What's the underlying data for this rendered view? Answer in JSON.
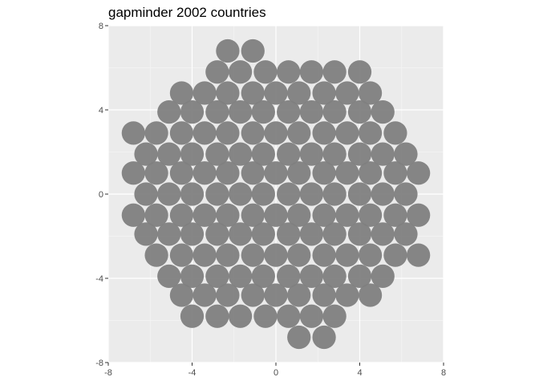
{
  "chart_data": {
    "type": "scatter",
    "title": "gapminder 2002 countries",
    "xlabel": "",
    "ylabel": "",
    "xlim": [
      -8,
      8
    ],
    "ylim": [
      -8,
      8
    ],
    "x_ticks": [
      -8,
      -4,
      0,
      4,
      8
    ],
    "y_ticks": [
      -8,
      -4,
      0,
      4,
      8
    ],
    "x_tick_labels": [
      "-8",
      "-4",
      "0",
      "4",
      "8"
    ],
    "y_tick_labels": [
      "-8",
      "-4",
      "0",
      "4",
      "8"
    ],
    "grid": true,
    "legend": "none",
    "point_radius": 0.56,
    "colors": {
      "panel": "#ebebeb",
      "grid_major": "#ffffff",
      "grid_minor": "#f5f5f5",
      "point": "#808080",
      "axis_text": "#4d4d4d",
      "tick": "#333333",
      "title": "#000000"
    },
    "rows": [
      {
        "y": 6.8,
        "x": [
          -2.3,
          -1.1
        ]
      },
      {
        "y": 5.8,
        "x": [
          -2.8,
          -1.7,
          -0.5,
          0.6,
          1.7,
          2.8,
          4.0
        ]
      },
      {
        "y": 4.8,
        "x": [
          -4.5,
          -3.4,
          -2.3,
          -1.1,
          0.0,
          1.1,
          2.3,
          3.4,
          4.5
        ]
      },
      {
        "y": 3.9,
        "x": [
          -5.1,
          -4.0,
          -2.8,
          -1.7,
          -0.6,
          0.6,
          1.7,
          2.8,
          4.0,
          5.1
        ]
      },
      {
        "y": 2.9,
        "x": [
          -6.8,
          -5.7,
          -4.5,
          -3.4,
          -2.3,
          -1.1,
          0.0,
          1.1,
          2.3,
          3.4,
          4.5,
          5.7
        ]
      },
      {
        "y": 1.9,
        "x": [
          -6.2,
          -5.1,
          -4.0,
          -2.8,
          -1.7,
          -0.6,
          0.6,
          1.7,
          2.8,
          4.0,
          5.1,
          6.2
        ]
      },
      {
        "y": 1.0,
        "x": [
          -6.8,
          -5.7,
          -4.5,
          -3.4,
          -2.3,
          -1.1,
          0.0,
          1.1,
          2.3,
          3.4,
          4.5,
          5.7,
          6.8
        ]
      },
      {
        "y": 0.0,
        "x": [
          -6.2,
          -5.1,
          -4.0,
          -2.8,
          -1.7,
          -0.6,
          0.6,
          1.7,
          2.8,
          4.0,
          5.1,
          6.2
        ]
      },
      {
        "y": -1.0,
        "x": [
          -6.8,
          -5.7,
          -4.5,
          -3.4,
          -2.3,
          -1.1,
          0.0,
          1.1,
          2.3,
          3.4,
          4.5,
          5.7,
          6.8
        ]
      },
      {
        "y": -1.9,
        "x": [
          -6.2,
          -5.1,
          -4.0,
          -2.8,
          -1.7,
          -0.6,
          0.6,
          1.7,
          2.8,
          4.0,
          5.1,
          6.2
        ]
      },
      {
        "y": -2.9,
        "x": [
          -5.7,
          -4.5,
          -3.4,
          -2.3,
          -1.1,
          0.0,
          1.1,
          2.3,
          3.4,
          4.5,
          5.7,
          6.8
        ]
      },
      {
        "y": -3.9,
        "x": [
          -5.1,
          -4.0,
          -2.8,
          -1.7,
          -0.6,
          0.6,
          1.7,
          2.8,
          4.0,
          5.1
        ]
      },
      {
        "y": -4.8,
        "x": [
          -4.5,
          -3.4,
          -2.3,
          -1.1,
          0.0,
          1.1,
          2.3,
          3.4,
          4.5
        ]
      },
      {
        "y": -5.8,
        "x": [
          -4.0,
          -2.8,
          -1.7,
          -0.5,
          0.6,
          1.7,
          2.8
        ]
      },
      {
        "y": -6.8,
        "x": [
          1.1,
          2.3
        ]
      }
    ]
  }
}
